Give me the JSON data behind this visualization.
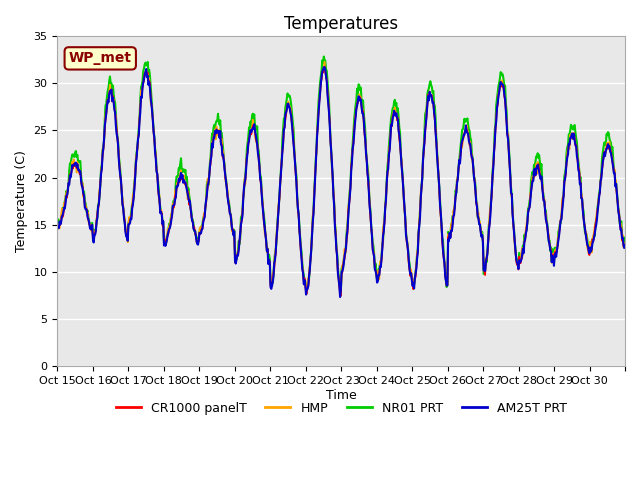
{
  "title": "Temperatures",
  "ylabel": "Temperature (C)",
  "xlabel": "Time",
  "ylim": [
    0,
    35
  ],
  "yticks": [
    0,
    5,
    10,
    15,
    20,
    25,
    30,
    35
  ],
  "annotation_text": "WP_met",
  "annotation_color": "#8B0000",
  "annotation_bg": "#FFFFCC",
  "x_tick_labels": [
    "Oct 15",
    "Oct 16",
    "Oct 17",
    "Oct 18",
    "Oct 19",
    "Oct 20",
    "Oct 21",
    "Oct 22",
    "Oct 23",
    "Oct 24",
    "Oct 25",
    "Oct 26",
    "Oct 27",
    "Oct 28",
    "Oct 29",
    "Oct 30"
  ],
  "series_labels": [
    "CR1000 panelT",
    "HMP",
    "NR01 PRT",
    "AM25T PRT"
  ],
  "series_colors": [
    "#FF0000",
    "#FFA500",
    "#00CC00",
    "#0000CC"
  ],
  "series_linewidths": [
    1.2,
    1.2,
    1.5,
    1.5
  ],
  "plot_bg_color": "#E8E8E8",
  "fig_bg_color": "#FFFFFF",
  "grid_color": "#FFFFFF",
  "title_fontsize": 12,
  "label_fontsize": 9,
  "tick_fontsize": 8,
  "legend_fontsize": 9,
  "daily_mins": [
    14.5,
    13.5,
    15.0,
    13.0,
    14.0,
    11.0,
    8.5,
    7.8,
    10.0,
    9.0,
    8.5,
    13.5,
    10.0,
    11.0,
    12.0,
    12.5
  ],
  "daily_maxs": [
    21.5,
    29.0,
    31.0,
    20.0,
    25.0,
    25.5,
    27.5,
    31.5,
    28.5,
    27.0,
    29.0,
    25.0,
    30.0,
    21.0,
    24.5,
    23.5
  ],
  "npoints_per_day": 48
}
